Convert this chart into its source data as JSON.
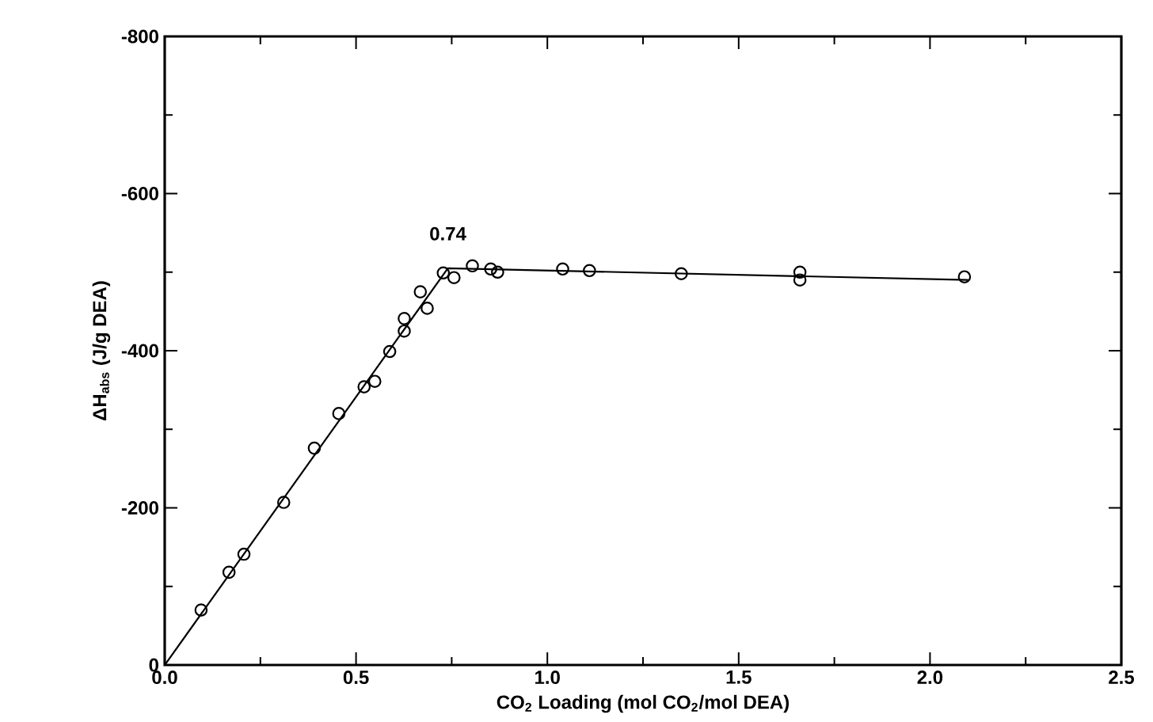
{
  "chart_data": {
    "type": "scatter",
    "xlabel": "CO$_{2}$ Loading  (mol CO$_{2}$/mol DEA)",
    "ylabel": "ΔH$_{abs}$  (J/g DEA)",
    "xlim": [
      0,
      2.5
    ],
    "ylim": [
      0,
      -800
    ],
    "xticks": [
      {
        "value": 0,
        "label": "0.0"
      },
      {
        "value": 0.5,
        "label": "0.5"
      },
      {
        "value": 1,
        "label": "1.0"
      },
      {
        "value": 1.5,
        "label": "1.5"
      },
      {
        "value": 2,
        "label": "2.0"
      },
      {
        "value": 2.5,
        "label": "2.5"
      }
    ],
    "yticks": [
      0,
      -200,
      -400,
      -600,
      -800
    ],
    "marker": "circle",
    "grid": false,
    "annotations": [
      {
        "text": "0.74",
        "x": 0.74,
        "y": -505
      }
    ],
    "series": [
      {
        "color": "#000000",
        "x": [
          0.095,
          0.168,
          0.207,
          0.311,
          0.391,
          0.455,
          0.521,
          0.549,
          0.588,
          0.626,
          0.626,
          0.686,
          0.668,
          0.728,
          0.756,
          0.804,
          0.852,
          0.87,
          1.04,
          1.11,
          1.35,
          1.66,
          1.66,
          2.09
        ],
        "values": [
          -70,
          -118,
          -141,
          -207,
          -276,
          -320,
          -354,
          -361,
          -399,
          -425,
          -441,
          -454,
          -475,
          -499,
          -493,
          -508,
          -504,
          -500,
          -504,
          -502,
          -498,
          -500,
          -490,
          -494
        ]
      },
      {
        "type": "line",
        "color": "#000000",
        "marker": "none",
        "x": [
          0,
          0.74,
          2.1
        ],
        "values": [
          0,
          -505,
          -490
        ]
      }
    ]
  }
}
